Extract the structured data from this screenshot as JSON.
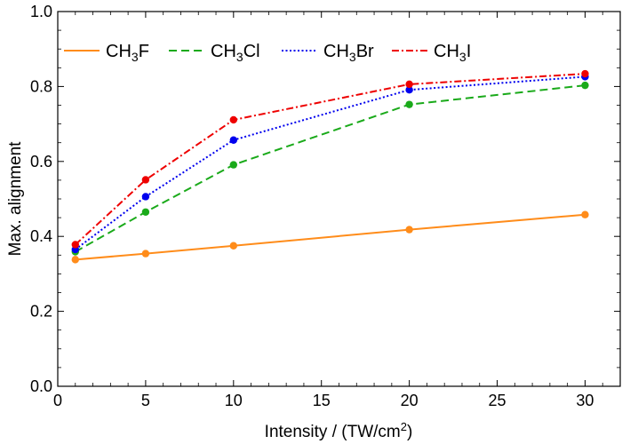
{
  "chart_data": {
    "type": "line",
    "title": "",
    "xlabel": "Intensity / (TW/cm",
    "xlabel_superscript": "2",
    "xlabel_suffix": ")",
    "ylabel": "Max. alignment",
    "xlim": [
      0,
      32
    ],
    "ylim": [
      0,
      1.0
    ],
    "xticks": [
      0,
      5,
      10,
      15,
      20,
      25,
      30
    ],
    "xtick_labels": [
      "0",
      "5",
      "10",
      "15",
      "20",
      "25",
      "30"
    ],
    "yticks": [
      0,
      0.2,
      0.4,
      0.6,
      0.8,
      1.0
    ],
    "ytick_labels": [
      "0.0",
      "0.2",
      "0.4",
      "0.6",
      "0.8",
      "1.0"
    ],
    "grid": false,
    "legend_position": "top",
    "x": [
      1,
      5,
      10,
      20,
      30
    ],
    "series": [
      {
        "name": "CH3F",
        "label_parts": [
          "CH",
          "3",
          "F"
        ],
        "color": "#ff8c1a",
        "line_color": "#ff8c1a",
        "dash": "solid",
        "values": [
          0.338,
          0.354,
          0.375,
          0.418,
          0.458
        ]
      },
      {
        "name": "CH3Cl",
        "label_parts": [
          "CH",
          "3",
          "Cl"
        ],
        "color": "#1aaa1a",
        "line_color": "#1aaa1a",
        "dash": "dashed",
        "values": [
          0.359,
          0.465,
          0.591,
          0.752,
          0.803
        ]
      },
      {
        "name": "CH3Br",
        "label_parts": [
          "CH",
          "3",
          "Br"
        ],
        "color": "#0000ee",
        "line_color": "#0000ee",
        "dash": "dotted",
        "values": [
          0.365,
          0.506,
          0.657,
          0.791,
          0.826
        ]
      },
      {
        "name": "CH3I",
        "label_parts": [
          "CH",
          "3",
          "I"
        ],
        "color": "#ee0000",
        "line_color": "#ee0000",
        "dash": "dashdot",
        "values": [
          0.378,
          0.551,
          0.711,
          0.806,
          0.834
        ]
      }
    ]
  }
}
